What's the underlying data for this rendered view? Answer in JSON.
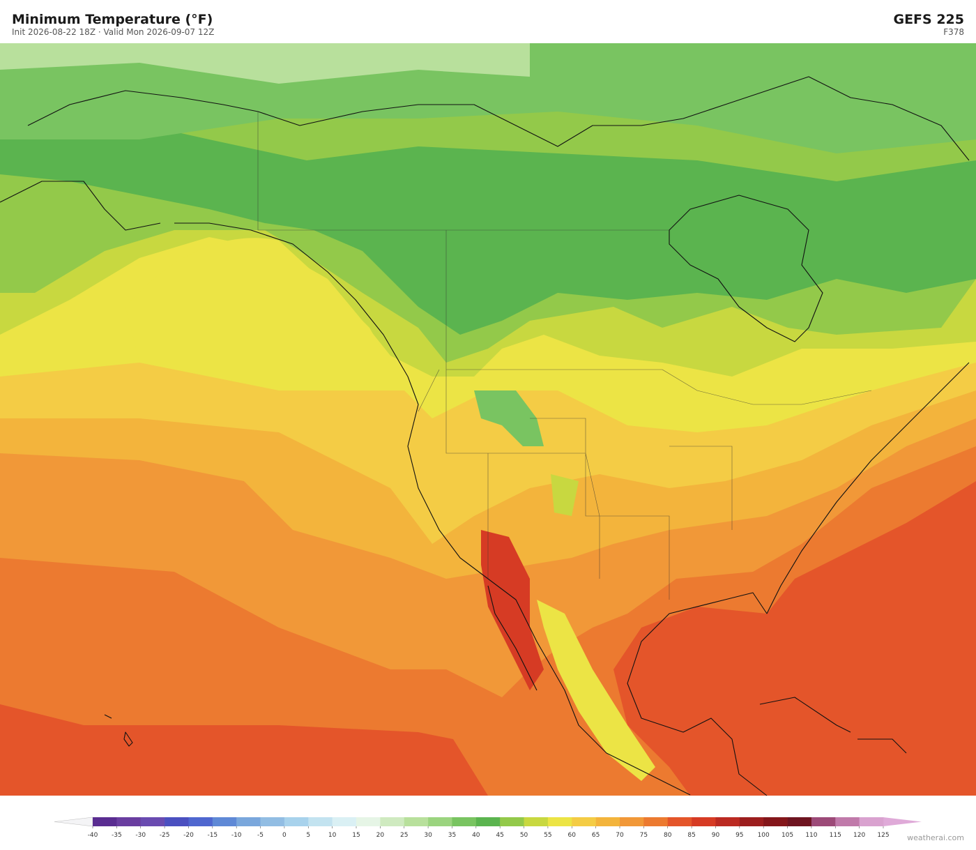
{
  "header": {
    "title": "Minimum Temperature  (°F)",
    "subtitle": "Init 2026-08-22 18Z   ·   Valid Mon 2026-09-07 12Z",
    "model": "GEFS  225",
    "forecast_hour": "F378"
  },
  "colorbar": {
    "ticks": [
      -40,
      -35,
      -30,
      -25,
      -20,
      -15,
      -10,
      -5,
      0,
      5,
      10,
      15,
      20,
      25,
      30,
      35,
      40,
      45,
      50,
      55,
      60,
      65,
      70,
      75,
      80,
      85,
      90,
      95,
      100,
      105,
      110,
      115,
      120,
      125
    ],
    "colors": [
      "#5a2d91",
      "#6a3ea0",
      "#6a4bb0",
      "#4b50c0",
      "#4f67cf",
      "#5f89d6",
      "#7aa7dc",
      "#92bde3",
      "#a8d2ec",
      "#c3e3f0",
      "#daf0f4",
      "#e6f5e6",
      "#cfeac0",
      "#b8e09c",
      "#9bd47f",
      "#79c461",
      "#5bb44f",
      "#93c94a",
      "#c8d840",
      "#ece445",
      "#f4cc45",
      "#f3b43c",
      "#f19838",
      "#ec7a30",
      "#e4552a",
      "#d63b24",
      "#bb2a22",
      "#9c1e1e",
      "#84161a",
      "#6e1420",
      "#9c4a78",
      "#c07aaa",
      "#d9a2cf"
    ],
    "under_color": "#f4f4f6",
    "over_color": "#dfaad8"
  },
  "watermark": "weatherai.com"
}
